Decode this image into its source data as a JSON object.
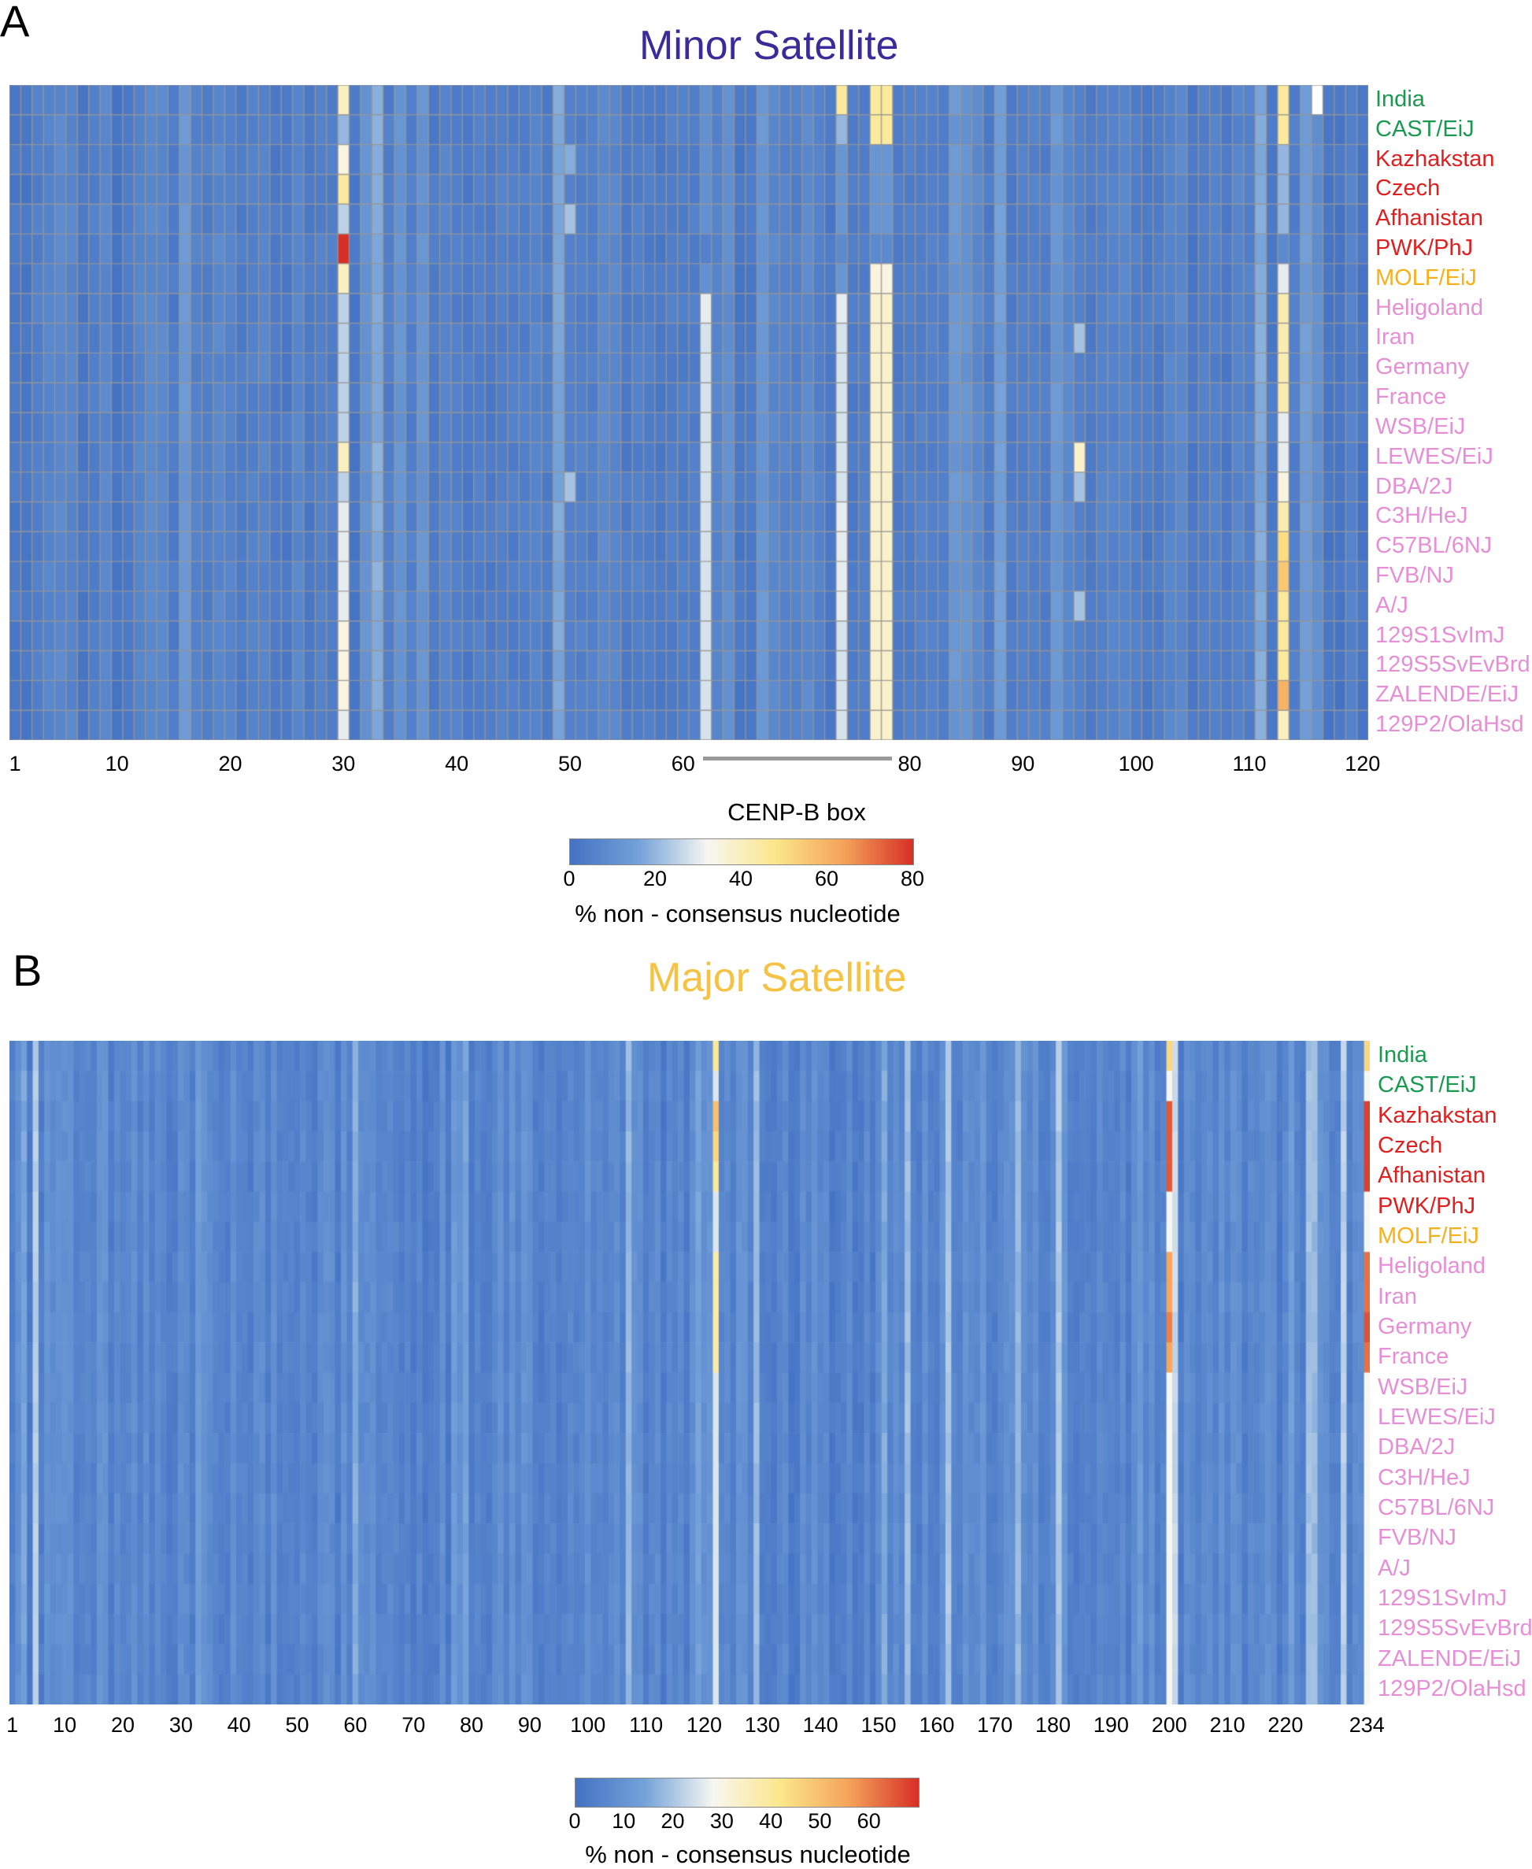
{
  "colors": {
    "green": "#1a9a50",
    "red": "#e02020",
    "orange": "#f5b01c",
    "pink": "#e68fd6",
    "minor_title": "#3a2a9a",
    "major_title": "#f5c243"
  },
  "colormap": [
    "#4472c4",
    "#74a2d9",
    "#f7f7f2",
    "#fce68a",
    "#f4a259",
    "#d73027"
  ],
  "rows": [
    {
      "name": "India",
      "group": "green"
    },
    {
      "name": "CAST/EiJ",
      "group": "green"
    },
    {
      "name": "Kazhakstan",
      "group": "red"
    },
    {
      "name": "Czech",
      "group": "red"
    },
    {
      "name": "Afhanistan",
      "group": "red"
    },
    {
      "name": "PWK/PhJ",
      "group": "red"
    },
    {
      "name": "MOLF/EiJ",
      "group": "orange"
    },
    {
      "name": "Heligoland",
      "group": "pink"
    },
    {
      "name": "Iran",
      "group": "pink"
    },
    {
      "name": "Germany",
      "group": "pink"
    },
    {
      "name": "France",
      "group": "pink"
    },
    {
      "name": "WSB/EiJ",
      "group": "pink"
    },
    {
      "name": "LEWES/EiJ",
      "group": "pink"
    },
    {
      "name": "DBA/2J",
      "group": "pink"
    },
    {
      "name": "C3H/HeJ",
      "group": "pink"
    },
    {
      "name": "C57BL/6NJ",
      "group": "pink"
    },
    {
      "name": "FVB/NJ",
      "group": "pink"
    },
    {
      "name": "A/J",
      "group": "pink"
    },
    {
      "name": "129S1SvImJ",
      "group": "pink"
    },
    {
      "name": "129S5SvEvBrd",
      "group": "pink"
    },
    {
      "name": "ZALENDE/EiJ",
      "group": "pink"
    },
    {
      "name": "129P2/OlaHsd",
      "group": "pink"
    }
  ],
  "chart_data": [
    {
      "panel": "A",
      "type": "heatmap",
      "title": "Minor Satellite",
      "positions": 120,
      "xticks": [
        1,
        10,
        20,
        30,
        40,
        50,
        60,
        80,
        90,
        100,
        110,
        120
      ],
      "xtick_labels": [
        "1",
        "10",
        "20",
        "30",
        "40",
        "50",
        "60",
        "80",
        "90",
        "100",
        "110",
        "120"
      ],
      "annotation": {
        "label": "CENP-B box",
        "start": 62,
        "end": 78
      },
      "colorbar": {
        "min": 0,
        "max": 80,
        "ticks": [
          0,
          20,
          40,
          60,
          80
        ],
        "tick_labels": [
          "0",
          "20",
          "40",
          "60",
          "80"
        ],
        "label": "% non - consensus nucleotide"
      },
      "baseline": 4,
      "hotspots": [
        {
          "pos": 30,
          "values": [
            40,
            20,
            35,
            45,
            25,
            80,
            40,
            25,
            25,
            25,
            25,
            25,
            40,
            25,
            30,
            30,
            30,
            30,
            35,
            35,
            35,
            30
          ]
        },
        {
          "pos": 74,
          "values": [
            45,
            20,
            12,
            12,
            12,
            8,
            12,
            30,
            28,
            28,
            28,
            28,
            28,
            28,
            30,
            30,
            30,
            30,
            28,
            28,
            28,
            28
          ]
        },
        {
          "pos": 77,
          "values": [
            45,
            45,
            12,
            12,
            12,
            8,
            35,
            38,
            38,
            38,
            38,
            38,
            38,
            38,
            38,
            38,
            38,
            38,
            38,
            38,
            38,
            38
          ]
        },
        {
          "pos": 78,
          "values": [
            45,
            45,
            12,
            12,
            12,
            8,
            35,
            38,
            38,
            38,
            38,
            38,
            38,
            38,
            38,
            38,
            38,
            38,
            38,
            38,
            38,
            38
          ]
        },
        {
          "pos": 113,
          "values": [
            45,
            45,
            20,
            20,
            20,
            8,
            30,
            42,
            42,
            42,
            42,
            30,
            30,
            35,
            42,
            50,
            55,
            45,
            45,
            45,
            60,
            40
          ]
        },
        {
          "pos": 95,
          "values": [
            5,
            5,
            5,
            5,
            5,
            5,
            5,
            5,
            22,
            5,
            5,
            5,
            38,
            22,
            5,
            5,
            5,
            22,
            5,
            5,
            5,
            5
          ]
        },
        {
          "pos": 62,
          "values": [
            10,
            10,
            10,
            10,
            10,
            5,
            10,
            30,
            28,
            28,
            28,
            28,
            28,
            28,
            28,
            28,
            28,
            28,
            28,
            28,
            28,
            28
          ]
        },
        {
          "pos": 50,
          "values": [
            5,
            5,
            18,
            5,
            22,
            5,
            5,
            5,
            5,
            5,
            5,
            5,
            5,
            22,
            5,
            5,
            5,
            5,
            5,
            5,
            5,
            5
          ]
        }
      ],
      "missing": [
        {
          "pos": 116,
          "row": 0
        }
      ]
    },
    {
      "panel": "B",
      "type": "heatmap",
      "title": "Major Satellite",
      "positions": 234,
      "xticks": [
        1,
        10,
        20,
        30,
        40,
        50,
        60,
        70,
        80,
        90,
        100,
        110,
        120,
        130,
        140,
        150,
        160,
        170,
        180,
        190,
        200,
        210,
        220,
        234
      ],
      "xtick_labels": [
        "1",
        "10",
        "20",
        "30",
        "40",
        "50",
        "60",
        "70",
        "80",
        "90",
        "100",
        "110",
        "120",
        "130",
        "140",
        "150",
        "160",
        "170",
        "180",
        "190",
        "200",
        "210",
        "220",
        "234"
      ],
      "colorbar": {
        "min": 0,
        "max": 70,
        "ticks": [
          0,
          10,
          20,
          30,
          40,
          50,
          60
        ],
        "tick_labels": [
          "0",
          "10",
          "20",
          "30",
          "40",
          "50",
          "60"
        ],
        "label": "% non - consensus nucleotide"
      },
      "baseline": 5,
      "hotspots": [
        {
          "pos": 122,
          "values": [
            40,
            25,
            50,
            45,
            40,
            25,
            25,
            38,
            38,
            38,
            38,
            25,
            25,
            25,
            25,
            25,
            25,
            25,
            25,
            25,
            25,
            25
          ]
        },
        {
          "pos": 200,
          "values": [
            45,
            28,
            65,
            65,
            65,
            28,
            28,
            55,
            55,
            60,
            55,
            28,
            28,
            28,
            28,
            28,
            28,
            28,
            28,
            28,
            28,
            28
          ]
        },
        {
          "pos": 234,
          "values": [
            45,
            28,
            68,
            68,
            68,
            28,
            28,
            62,
            62,
            66,
            62,
            28,
            28,
            28,
            28,
            28,
            28,
            28,
            28,
            28,
            28,
            28
          ]
        }
      ]
    }
  ],
  "panelA": {
    "letter": "A",
    "title": "Minor Satellite",
    "box_label": "CENP-B box",
    "cb_label": "% non - consensus nucleotide"
  },
  "panelB": {
    "letter": "B",
    "title": "Major Satellite",
    "cb_label": "% non - consensus nucleotide"
  }
}
